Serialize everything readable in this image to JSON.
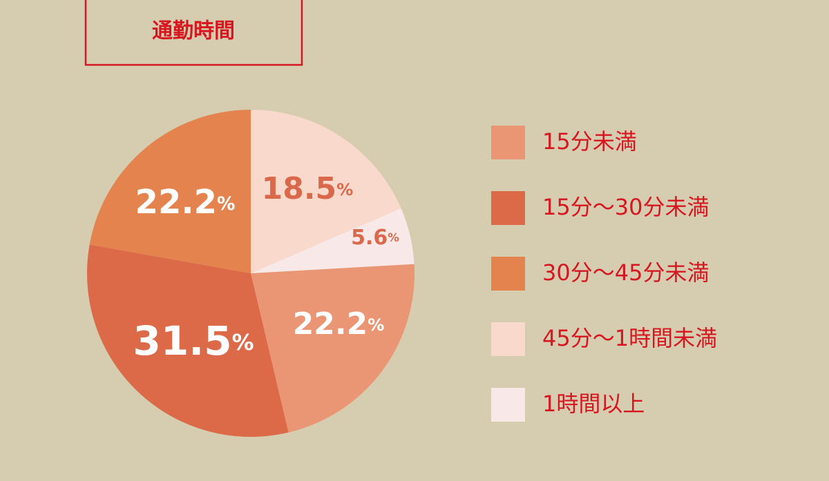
{
  "chart_data": {
    "type": "pie",
    "title": "通勤時間",
    "categories": [
      "15分未満",
      "15分〜30分未満",
      "30分〜45分未満",
      "45分〜1時間未満",
      "1時間以上"
    ],
    "values": [
      22.2,
      31.5,
      22.2,
      18.5,
      5.6
    ],
    "value_labels": [
      "22.2%",
      "31.5%",
      "22.2%",
      "18.5%",
      "5.6%"
    ],
    "colors": [
      "#ea9674",
      "#dc6a48",
      "#e5834e",
      "#fad9cd",
      "#f8e8e8"
    ]
  }
}
